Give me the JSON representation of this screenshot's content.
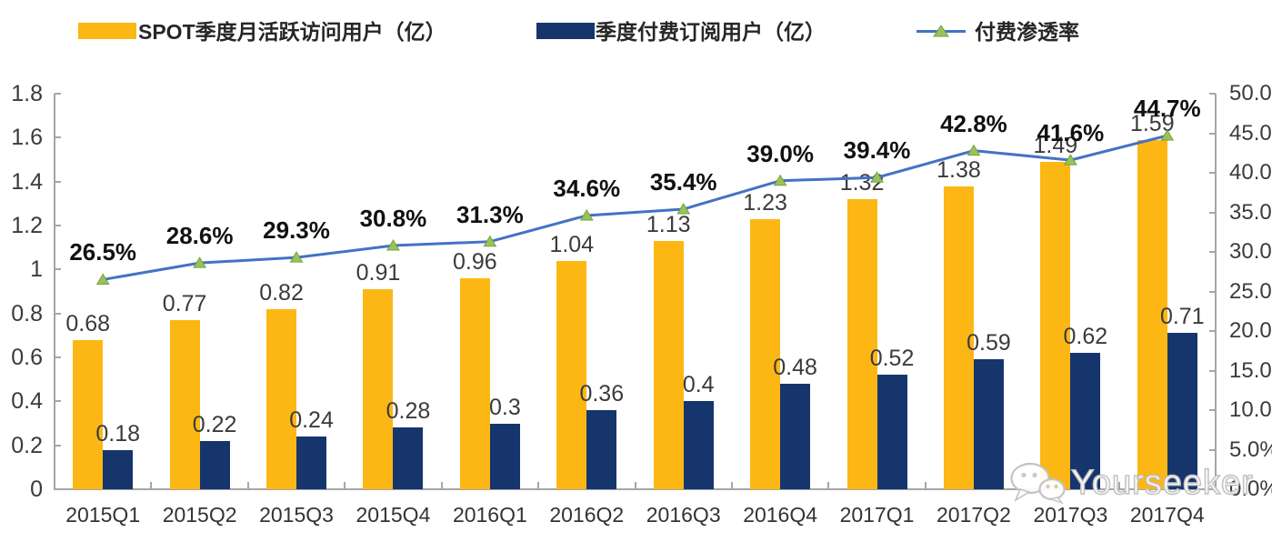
{
  "legend": {
    "items": [
      {
        "label": "SPOT季度月活跃访问用户（亿）",
        "swatch": "bar",
        "color": "#FCB714"
      },
      {
        "label": "季度付费订阅用户（亿）",
        "swatch": "bar",
        "color": "#16356D"
      },
      {
        "label": "付费渗透率",
        "swatch": "line-marker",
        "line_color": "#4472C4",
        "marker_color": "#9CC15C"
      }
    ]
  },
  "chart_data": {
    "type": "combo",
    "categories": [
      "2015Q1",
      "2015Q2",
      "2015Q3",
      "2015Q4",
      "2016Q1",
      "2016Q2",
      "2016Q3",
      "2016Q4",
      "2017Q1",
      "2017Q2",
      "2017Q3",
      "2017Q4"
    ],
    "series": [
      {
        "name": "SPOT季度月活跃访问用户（亿）",
        "type": "bar",
        "axis": "left",
        "color": "#FCB714",
        "values": [
          0.68,
          0.77,
          0.82,
          0.91,
          0.96,
          1.04,
          1.13,
          1.23,
          1.32,
          1.38,
          1.49,
          1.59
        ],
        "labels": [
          "0.68",
          "0.77",
          "0.82",
          "0.91",
          "0.96",
          "1.04",
          "1.13",
          "1.23",
          "1.32",
          "1.38",
          "1.49",
          "1.59"
        ]
      },
      {
        "name": "季度付费订阅用户（亿）",
        "type": "bar",
        "axis": "left",
        "color": "#16356D",
        "values": [
          0.18,
          0.22,
          0.24,
          0.28,
          0.3,
          0.36,
          0.4,
          0.48,
          0.52,
          0.59,
          0.62,
          0.71
        ],
        "labels": [
          "0.18",
          "0.22",
          "0.24",
          "0.28",
          "0.3",
          "0.36",
          "0.4",
          "0.48",
          "0.52",
          "0.59",
          "0.62",
          "0.71"
        ]
      },
      {
        "name": "付费渗透率",
        "type": "line",
        "axis": "right",
        "color": "#4472C4",
        "marker": "triangle",
        "marker_color": "#9CC15C",
        "marker_edge": "#71A33C",
        "values": [
          26.5,
          28.6,
          29.3,
          30.8,
          31.3,
          34.6,
          35.4,
          39.0,
          39.4,
          42.8,
          41.6,
          44.7
        ],
        "labels": [
          "26.5%",
          "28.6%",
          "29.3%",
          "30.8%",
          "31.3%",
          "34.6%",
          "35.4%",
          "39.0%",
          "39.4%",
          "42.8%",
          "41.6%",
          "44.7%"
        ]
      }
    ],
    "left_axis": {
      "min": 0,
      "max": 1.8,
      "tick_labels": [
        "0",
        "0.2",
        "0.4",
        "0.6",
        "0.8",
        "1",
        "1.2",
        "1.4",
        "1.6",
        "1.8"
      ]
    },
    "right_axis": {
      "min": 0,
      "max": 50,
      "tick_labels": [
        "0.0%",
        "5.0%",
        "10.0%",
        "15.0%",
        "20.0%",
        "25.0%",
        "30.0%",
        "35.0%",
        "40.0%",
        "45.0%",
        "50.0%"
      ]
    },
    "grid": false,
    "legend_position": "top"
  },
  "watermark": {
    "text": "Yourseeker",
    "icon": "wechat-icon"
  },
  "colors": {
    "axis": "#a6a6a6"
  }
}
